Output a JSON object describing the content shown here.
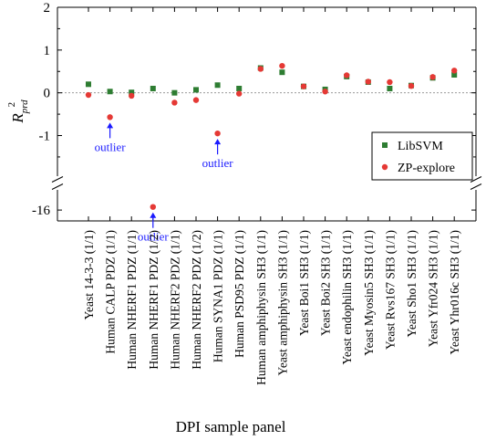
{
  "chart_data": {
    "type": "scatter",
    "title": "",
    "xlabel": "DPI sample panel",
    "ylabel_main": "R",
    "ylabel_sub": "prd",
    "ylabel_sup": "2",
    "upper_yticks": [
      "2",
      "1",
      "0",
      "-1"
    ],
    "lower_ytick": "-16",
    "ylim_upper": [
      -1.95,
      2
    ],
    "ylim_lower": [
      -16.35,
      -15.35
    ],
    "axis_break": true,
    "zero_reference_line": true,
    "grid": false,
    "legend_position": "right",
    "categories": [
      "Yeast 14-3-3 (1/1)",
      "Human CALP PDZ (1/1)",
      "Human NHERF1 PDZ (1/1)",
      "Human NHERF1 PDZ (1/2)",
      "Human NHERF2 PDZ (1/1)",
      "Human NHERF2 PDZ (1/2)",
      "Human SYNA1 PDZ (1/1)",
      "Human PSD95 PDZ (1/1)",
      "Human amphiphysin SH3 (1/1)",
      "Yeast amphiphysin SH3 (1/1)",
      "Yeast Boi1 SH3 (1/1)",
      "Yeast Boi2 SH3 (1/1)",
      "Yeast endophilin SH3 (1/1)",
      "Yeast Myosin5 SH3 (1/1)",
      "Yeast Rvs167 SH3 (1/1)",
      "Yeast Sho1 SH3 (1/1)",
      "Yeast Yfr024 SH3 (1/1)",
      "Yeast Yhr016c SH3 (1/1)"
    ],
    "series": [
      {
        "name": "LibSVM",
        "marker": "square",
        "color": "#2e7d32",
        "values": [
          0.2,
          0.03,
          0.01,
          0.1,
          0.0,
          0.07,
          0.18,
          0.1,
          0.58,
          0.48,
          0.15,
          0.08,
          0.38,
          0.25,
          0.1,
          0.17,
          0.35,
          0.42
        ]
      },
      {
        "name": "ZP-explore",
        "marker": "circle",
        "color": "#e53935",
        "values": [
          -0.05,
          -0.57,
          -0.07,
          -15.9,
          -0.23,
          -0.17,
          -0.95,
          -0.02,
          0.56,
          0.63,
          0.15,
          0.03,
          0.41,
          0.26,
          0.25,
          0.16,
          0.37,
          0.52
        ]
      }
    ],
    "annotations": [
      {
        "text": "outlier",
        "category_index": 1,
        "series": "ZP-explore"
      },
      {
        "text": "outlier",
        "category_index": 3,
        "series": "ZP-explore"
      },
      {
        "text": "outlier",
        "category_index": 6,
        "series": "ZP-explore"
      }
    ],
    "annotation_color": "#1a1aff"
  }
}
